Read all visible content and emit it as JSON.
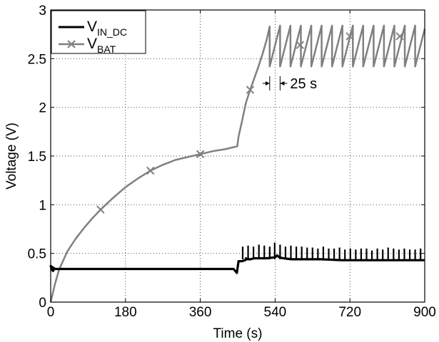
{
  "chart_data": {
    "type": "line",
    "xlabel": "Time (s)",
    "ylabel": "Voltage (V)",
    "xlim": [
      0,
      900
    ],
    "ylim": [
      0,
      3
    ],
    "xticks": [
      0,
      180,
      360,
      540,
      720,
      900
    ],
    "yticks": [
      0,
      0.5,
      1,
      1.5,
      2,
      2.5,
      3
    ],
    "xtick_labels": [
      "0",
      "180",
      "360",
      "540",
      "720",
      "900"
    ],
    "ytick_labels": [
      "0",
      "0.5",
      "1",
      "1.5",
      "2",
      "2.5",
      "3"
    ],
    "grid": true,
    "legend_position": "top-left",
    "series": [
      {
        "name": "V_IN_DC",
        "legend_main": "V",
        "legend_sub": "IN_DC",
        "color": "#000000",
        "marker": "none",
        "x": [
          0,
          2,
          4,
          6,
          8,
          10,
          440,
          448,
          452,
          460,
          468,
          470,
          472,
          480,
          490,
          500,
          520,
          540,
          545,
          550,
          560,
          580,
          600,
          650,
          700,
          750,
          800,
          850,
          900
        ],
        "y": [
          0.38,
          0.33,
          0.36,
          0.32,
          0.35,
          0.34,
          0.34,
          0.3,
          0.42,
          0.42,
          0.43,
          0.45,
          0.44,
          0.44,
          0.45,
          0.45,
          0.45,
          0.46,
          0.48,
          0.46,
          0.45,
          0.44,
          0.44,
          0.44,
          0.43,
          0.43,
          0.43,
          0.43,
          0.43
        ],
        "spikes": {
          "x": [
            462,
            475,
            488,
            501,
            514,
            527,
            539,
            552,
            565,
            578,
            591,
            604,
            617,
            630,
            643,
            656,
            669,
            682,
            695,
            708,
            721,
            734,
            747,
            760,
            773,
            786,
            799,
            812,
            825,
            838,
            851,
            864,
            877,
            890
          ],
          "peak": [
            0.57,
            0.58,
            0.57,
            0.59,
            0.58,
            0.57,
            0.61,
            0.59,
            0.57,
            0.58,
            0.57,
            0.57,
            0.56,
            0.56,
            0.55,
            0.57,
            0.55,
            0.55,
            0.56,
            0.54,
            0.55,
            0.54,
            0.55,
            0.55,
            0.53,
            0.55,
            0.54,
            0.56,
            0.55,
            0.54,
            0.55,
            0.54,
            0.54,
            0.55
          ]
        }
      },
      {
        "name": "V_BAT",
        "legend_main": "V",
        "legend_sub": "BAT",
        "color": "#808080",
        "marker": "x",
        "x": [
          0,
          10,
          20,
          40,
          60,
          80,
          100,
          120,
          150,
          180,
          210,
          240,
          270,
          300,
          330,
          360,
          390,
          420,
          449,
          452,
          460,
          470,
          480,
          490,
          500,
          510,
          520,
          527
        ],
        "y": [
          0.0,
          0.18,
          0.33,
          0.52,
          0.65,
          0.76,
          0.86,
          0.95,
          1.07,
          1.18,
          1.27,
          1.35,
          1.41,
          1.46,
          1.49,
          1.52,
          1.55,
          1.57,
          1.6,
          1.7,
          1.85,
          2.05,
          2.18,
          2.3,
          2.42,
          2.55,
          2.7,
          2.83
        ],
        "marker_x": [
          120,
          240,
          360,
          480,
          600,
          720,
          840
        ],
        "marker_y": [
          0.95,
          1.35,
          1.52,
          2.18,
          2.64,
          2.73,
          2.73
        ],
        "sawtooth": {
          "period_s": 25,
          "x_start": 527,
          "x_end": 900,
          "low": 2.42,
          "high": 2.84
        }
      }
    ],
    "annotations": [
      {
        "text": "25 s",
        "type": "dimension",
        "x_from": 527,
        "x_to": 552,
        "y": 2.42
      }
    ]
  }
}
